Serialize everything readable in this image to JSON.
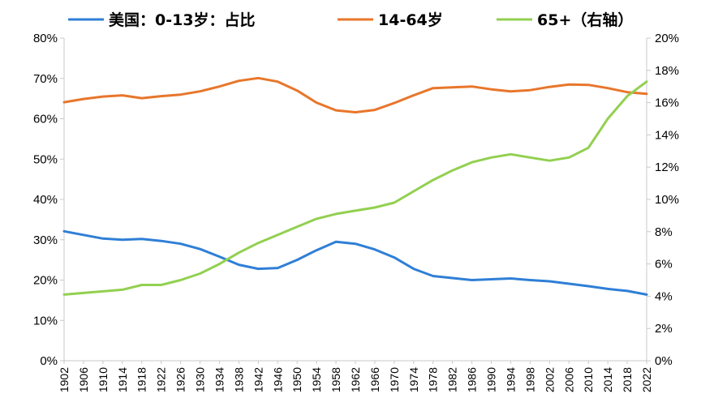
{
  "chart_data": {
    "type": "line",
    "title": "",
    "xlabel": "",
    "ylabel": "",
    "x": [
      1902,
      1906,
      1910,
      1914,
      1918,
      1922,
      1926,
      1930,
      1934,
      1938,
      1942,
      1946,
      1950,
      1954,
      1958,
      1962,
      1966,
      1970,
      1974,
      1978,
      1982,
      1986,
      1990,
      1994,
      1998,
      2002,
      2006,
      2010,
      2014,
      2018,
      2022
    ],
    "x_ticks": [
      "1902",
      "1906",
      "1910",
      "1914",
      "1918",
      "1922",
      "1926",
      "1930",
      "1934",
      "1938",
      "1942",
      "1946",
      "1950",
      "1954",
      "1958",
      "1962",
      "1966",
      "1970",
      "1974",
      "1978",
      "1982",
      "1986",
      "1990",
      "1994",
      "1998",
      "2002",
      "2006",
      "2010",
      "2014",
      "2018",
      "2022"
    ],
    "y_left_ticks": [
      "0%",
      "10%",
      "20%",
      "30%",
      "40%",
      "50%",
      "60%",
      "70%",
      "80%"
    ],
    "y_right_ticks": [
      "0%",
      "2%",
      "4%",
      "6%",
      "8%",
      "10%",
      "12%",
      "14%",
      "16%",
      "18%",
      "20%"
    ],
    "ylim_left": [
      0,
      80
    ],
    "ylim_right": [
      0,
      20
    ],
    "legend_position": "top",
    "grid": false,
    "series": [
      {
        "name": "美国：0-13岁：占比",
        "axis": "left",
        "color": "#2f7fd6",
        "values": [
          32.1,
          31.2,
          30.3,
          30.0,
          30.2,
          29.7,
          29.0,
          27.7,
          25.8,
          23.8,
          22.8,
          23.0,
          25.0,
          27.4,
          29.5,
          29.0,
          27.6,
          25.6,
          22.8,
          21.0,
          20.5,
          20.0,
          20.2,
          20.4,
          20.0,
          19.7,
          19.1,
          18.5,
          17.8,
          17.3,
          16.4
        ]
      },
      {
        "name": "14-64岁",
        "axis": "left",
        "color": "#e8762b",
        "values": [
          64.1,
          64.9,
          65.5,
          65.8,
          65.1,
          65.6,
          66.0,
          66.8,
          68.0,
          69.4,
          70.1,
          69.2,
          67.0,
          64.0,
          62.1,
          61.6,
          62.2,
          63.9,
          65.8,
          67.6,
          67.8,
          68.0,
          67.3,
          66.8,
          67.1,
          67.9,
          68.5,
          68.4,
          67.6,
          66.6,
          66.2
        ]
      },
      {
        "name": "65+（右轴）",
        "axis": "right",
        "color": "#92d050",
        "values": [
          4.1,
          4.2,
          4.3,
          4.4,
          4.7,
          4.7,
          5.0,
          5.4,
          6.0,
          6.7,
          7.3,
          7.8,
          8.3,
          8.8,
          9.1,
          9.3,
          9.5,
          9.8,
          10.5,
          11.2,
          11.8,
          12.3,
          12.6,
          12.8,
          12.6,
          12.4,
          12.6,
          13.2,
          15.0,
          16.4,
          17.3
        ]
      }
    ]
  }
}
